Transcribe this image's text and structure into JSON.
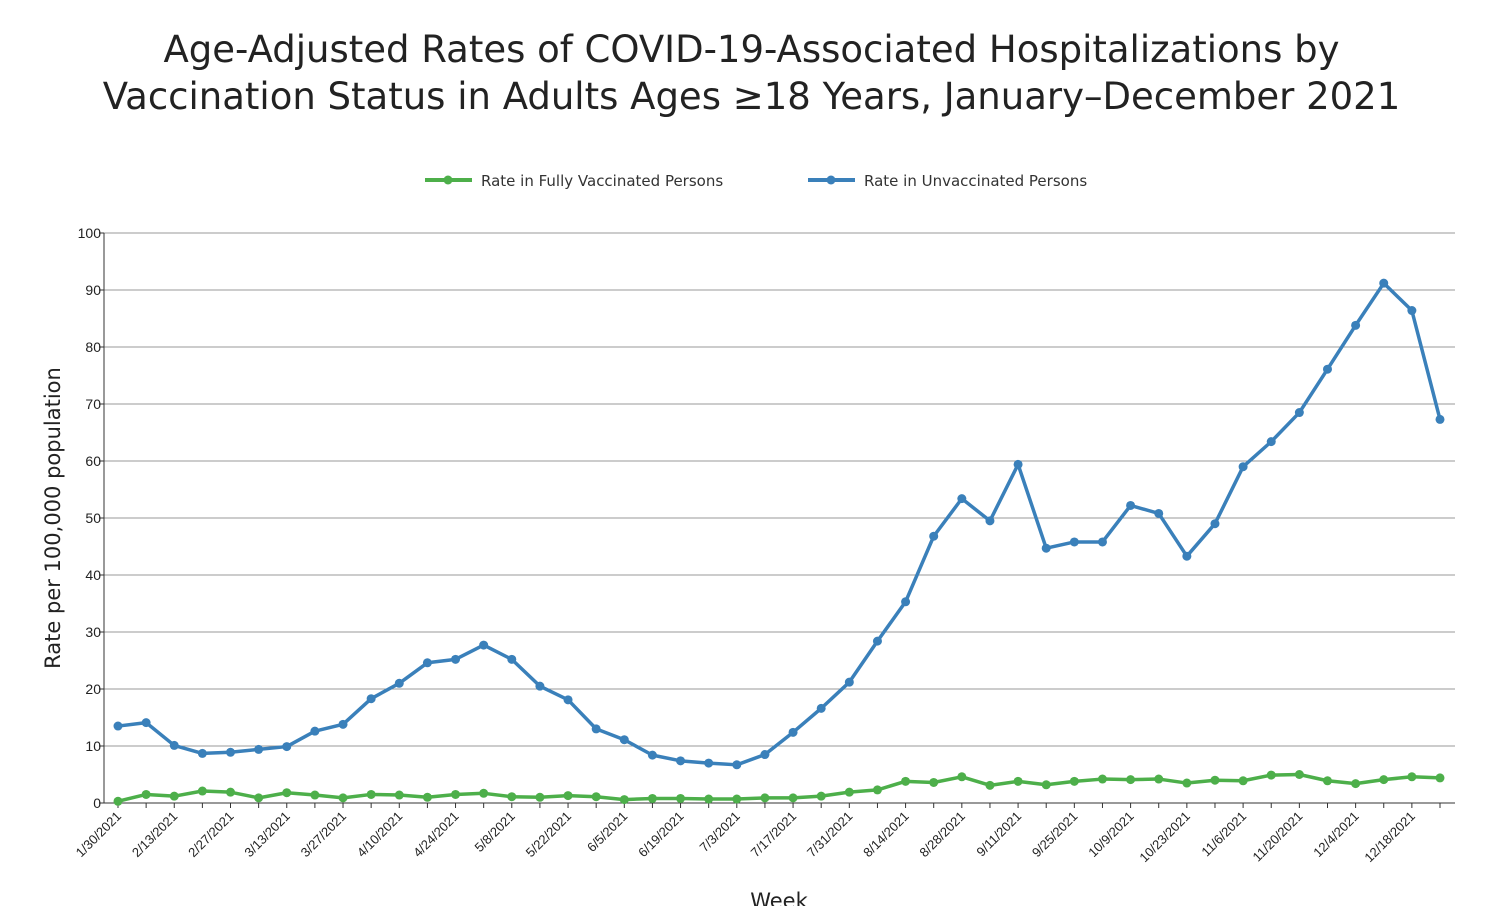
{
  "chart_data": {
    "type": "line",
    "title_lines": [
      "Age-Adjusted Rates of COVID-19-Associated Hospitalizations by",
      "Vaccination Status in Adults Ages ≥18 Years, January–December 2021"
    ],
    "xlabel": "Week",
    "ylabel": "Rate per 100,000 population",
    "ylim": [
      0,
      100
    ],
    "yticks": [
      0,
      10,
      20,
      30,
      40,
      50,
      60,
      70,
      80,
      90,
      100
    ],
    "grid": true,
    "legend_position": "top-center",
    "x": [
      "1/30/2021",
      "2/6/2021",
      "2/13/2021",
      "2/20/2021",
      "2/27/2021",
      "3/6/2021",
      "3/13/2021",
      "3/20/2021",
      "3/27/2021",
      "4/3/2021",
      "4/10/2021",
      "4/17/2021",
      "4/24/2021",
      "5/1/2021",
      "5/8/2021",
      "5/15/2021",
      "5/22/2021",
      "5/29/2021",
      "6/5/2021",
      "6/12/2021",
      "6/19/2021",
      "6/26/2021",
      "7/3/2021",
      "7/10/2021",
      "7/17/2021",
      "7/24/2021",
      "7/31/2021",
      "8/7/2021",
      "8/14/2021",
      "8/21/2021",
      "8/28/2021",
      "9/4/2021",
      "9/11/2021",
      "9/18/2021",
      "9/25/2021",
      "10/2/2021",
      "10/9/2021",
      "10/16/2021",
      "10/23/2021",
      "10/30/2021",
      "11/6/2021",
      "11/13/2021",
      "11/20/2021",
      "11/27/2021",
      "12/4/2021",
      "12/11/2021",
      "12/18/2021",
      "12/25/2021"
    ],
    "x_tick_labels": [
      "1/30/2021",
      "2/13/2021",
      "2/27/2021",
      "3/13/2021",
      "3/27/2021",
      "4/10/2021",
      "4/24/2021",
      "5/8/2021",
      "5/22/2021",
      "6/5/2021",
      "6/19/2021",
      "7/3/2021",
      "7/17/2021",
      "7/31/2021",
      "8/14/2021",
      "8/28/2021",
      "9/11/2021",
      "9/25/2021",
      "10/9/2021",
      "10/23/2021",
      "11/6/2021",
      "11/20/2021",
      "12/4/2021",
      "12/18/2021"
    ],
    "series": [
      {
        "name": "Rate in Fully Vaccinated Persons",
        "color": "#4daf4a",
        "values": [
          0.3,
          1.5,
          1.2,
          2.1,
          1.9,
          0.9,
          1.8,
          1.4,
          0.9,
          1.5,
          1.4,
          1.0,
          1.5,
          1.7,
          1.1,
          1.0,
          1.3,
          1.1,
          0.6,
          0.8,
          0.8,
          0.7,
          0.7,
          0.9,
          0.9,
          1.2,
          1.9,
          2.3,
          3.8,
          3.6,
          4.6,
          3.1,
          3.8,
          3.2,
          3.8,
          4.2,
          4.1,
          4.2,
          3.5,
          4.0,
          3.9,
          4.9,
          5.0,
          3.9,
          3.4,
          4.1,
          4.6,
          4.4
        ]
      },
      {
        "name": "Rate in Unvaccinated Persons",
        "color": "#3a80ba",
        "values": [
          13.5,
          14.1,
          10.1,
          8.7,
          8.9,
          9.4,
          9.9,
          12.6,
          13.8,
          18.3,
          21.0,
          24.6,
          25.2,
          27.7,
          25.2,
          20.5,
          18.1,
          13.0,
          11.1,
          8.4,
          7.4,
          7.0,
          6.7,
          8.5,
          12.4,
          16.6,
          21.2,
          28.4,
          35.3,
          46.8,
          53.4,
          49.5,
          59.4,
          44.7,
          45.8,
          45.8,
          52.2,
          50.8,
          43.3,
          49.0,
          59.0,
          63.4,
          68.5,
          76.1,
          83.8,
          91.2,
          86.4,
          67.3
        ]
      }
    ]
  }
}
